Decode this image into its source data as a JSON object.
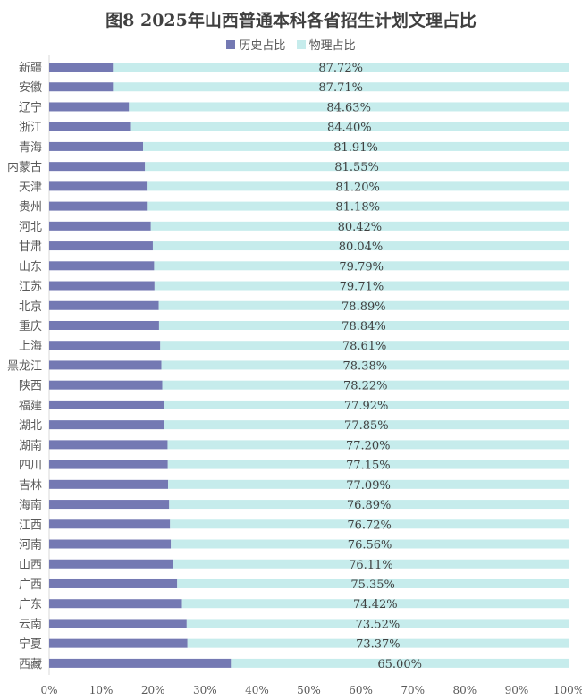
{
  "chart_data": {
    "type": "bar",
    "orientation": "horizontal",
    "stacked": "percent",
    "title": "图8  2025年山西普通本科各省招生计划文理占比",
    "legend_position": "top",
    "xlim": [
      0,
      100
    ],
    "x_ticks": [
      "0%",
      "10%",
      "20%",
      "30%",
      "40%",
      "50%",
      "60%",
      "70%",
      "80%",
      "90%",
      "100%"
    ],
    "categories": [
      "新疆",
      "安徽",
      "辽宁",
      "浙江",
      "青海",
      "内蒙古",
      "天津",
      "贵州",
      "河北",
      "甘肃",
      "山东",
      "江苏",
      "北京",
      "重庆",
      "上海",
      "黑龙江",
      "陕西",
      "福建",
      "湖北",
      "湖南",
      "四川",
      "吉林",
      "海南",
      "江西",
      "河南",
      "山西",
      "广西",
      "广东",
      "云南",
      "宁夏",
      "西藏"
    ],
    "series": [
      {
        "name": "历史占比",
        "color": "#7479b3",
        "values": [
          12.28,
          12.29,
          15.37,
          15.6,
          18.09,
          18.45,
          18.8,
          18.82,
          19.58,
          19.96,
          20.21,
          20.29,
          21.11,
          21.16,
          21.39,
          21.62,
          21.78,
          22.08,
          22.15,
          22.8,
          22.85,
          22.91,
          23.11,
          23.28,
          23.44,
          23.89,
          24.65,
          25.58,
          26.48,
          26.63,
          35.0
        ]
      },
      {
        "name": "物理占比",
        "color": "#c6ecec",
        "values": [
          87.72,
          87.71,
          84.63,
          84.4,
          81.91,
          81.55,
          81.2,
          81.18,
          80.42,
          80.04,
          79.79,
          79.71,
          78.89,
          78.84,
          78.61,
          78.38,
          78.22,
          77.92,
          77.85,
          77.2,
          77.15,
          77.09,
          76.89,
          76.72,
          76.56,
          76.11,
          75.35,
          74.42,
          73.52,
          73.37,
          65.0
        ]
      }
    ],
    "data_labels": [
      "87.72%",
      "87.71%",
      "84.63%",
      "84.40%",
      "81.91%",
      "81.55%",
      "81.20%",
      "81.18%",
      "80.42%",
      "80.04%",
      "79.79%",
      "79.71%",
      "78.89%",
      "78.84%",
      "78.61%",
      "78.38%",
      "78.22%",
      "77.92%",
      "77.85%",
      "77.20%",
      "77.15%",
      "77.09%",
      "76.89%",
      "76.72%",
      "76.56%",
      "76.11%",
      "75.35%",
      "74.42%",
      "73.52%",
      "73.37%",
      "65.00%"
    ]
  }
}
